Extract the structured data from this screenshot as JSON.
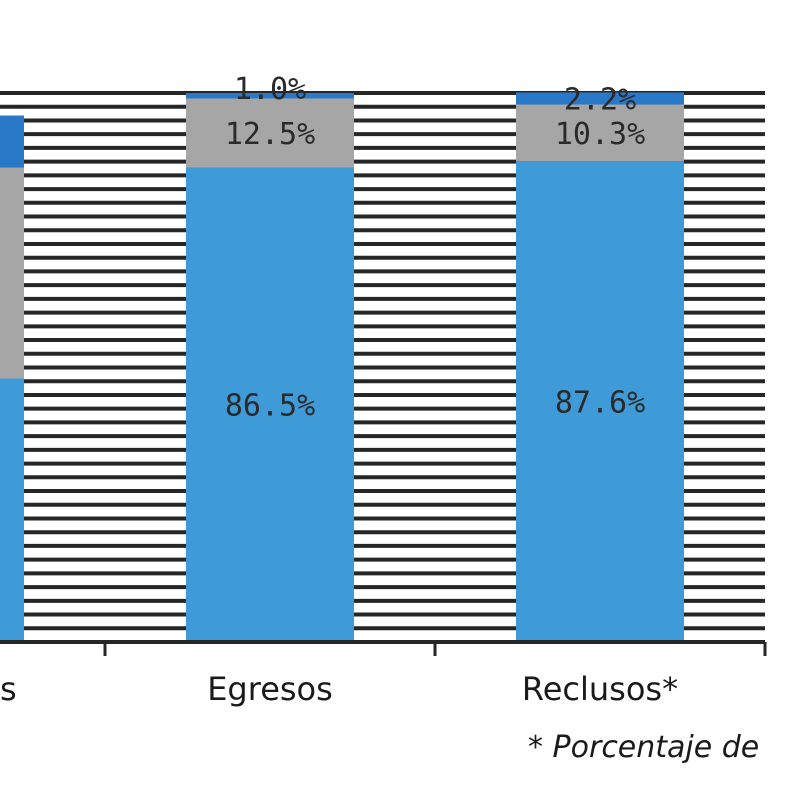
{
  "chart_data": {
    "type": "bar",
    "stacked": true,
    "categories": [
      "s",
      "Egresos",
      "Reclusos*"
    ],
    "series": [
      {
        "values": [
          48.0,
          86.5,
          87.6
        ],
        "labels": [
          "",
          "86.5%",
          "87.6%"
        ],
        "color": "#3f9ad8"
      },
      {
        "values": [
          38.4,
          12.5,
          10.3
        ],
        "labels": [
          "",
          "12.5%",
          "10.3%"
        ],
        "color": "#a6a6a6"
      },
      {
        "values": [
          9.5,
          1.0,
          2.2
        ],
        "labels": [
          "",
          "1.0%",
          "2.2%"
        ],
        "color": "#2a78c8"
      }
    ],
    "ylim": [
      0,
      100
    ],
    "grid": true,
    "legend": "none",
    "footnote": "* Porcentaje de"
  }
}
